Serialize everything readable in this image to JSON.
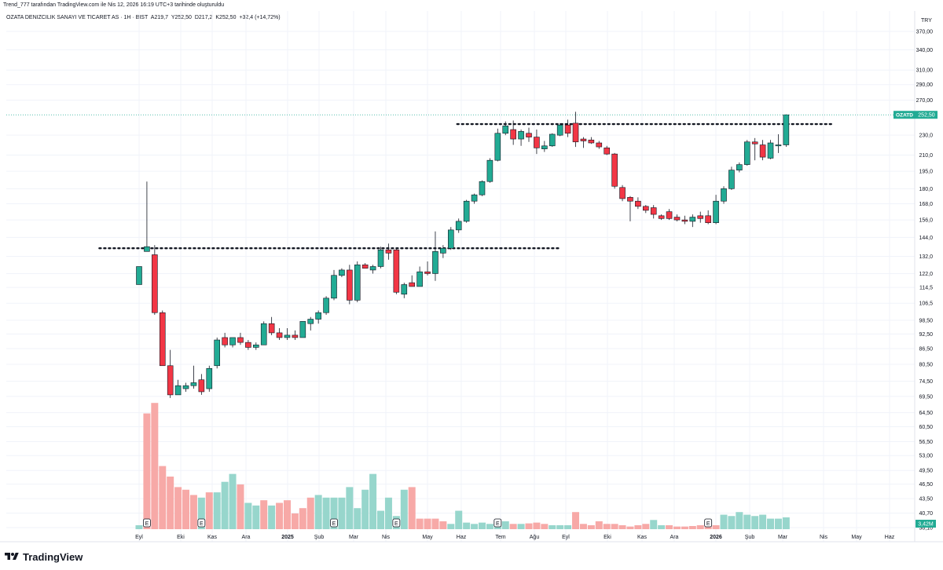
{
  "header": {
    "credit": "Trend_777 tarafından TradingView.com ile Nis 12, 2026 16:19 UTC+3 tarihinde oluşturuldu"
  },
  "legend": {
    "symbol": "OZATA DENIZCILIK SANAYI VE TICARET AS · 1H · BIST",
    "open": "A219,7",
    "high": "Y252,50",
    "low": "D217,2",
    "close": "K252,50",
    "change": "+32,4 (+14,72%)"
  },
  "brand": {
    "name": "TradingView"
  },
  "colors": {
    "up": "#22ab94",
    "down": "#f23645",
    "volume_up": "#97d6cc",
    "volume_down": "#f7a9a7",
    "last_price": "#22ab94",
    "grid": "#f0f3fa",
    "level_line": "#131722"
  },
  "chart_data": {
    "type": "candlestick",
    "currency": "TRY",
    "interval": "1H",
    "y_scale": "log",
    "price_ticks": [
      "370,00",
      "340,00",
      "310,00",
      "290,00",
      "270,00",
      "230,0",
      "210,0",
      "195,0",
      "180,0",
      "168,0",
      "156,0",
      "144,0",
      "132,0",
      "122,0",
      "114,5",
      "106,5",
      "98,50",
      "92,50",
      "86,50",
      "80,50",
      "74,50",
      "69,50",
      "64,50",
      "60,50",
      "56,50",
      "53,00",
      "49,50",
      "46,50",
      "43,50",
      "40,70",
      "38,10"
    ],
    "time_labels": [
      "Eyl",
      "Eki",
      "Kas",
      "Ara",
      "2025",
      "Şub",
      "Mar",
      "Nis",
      "May",
      "Haz",
      "Tem",
      "Ağu",
      "Eyl",
      "Eki",
      "Kas",
      "Ara",
      "2026",
      "Şub",
      "Mar",
      "Nis",
      "May",
      "Haz"
    ],
    "bold_time_labels": [
      "2025",
      "2026"
    ],
    "candles": [
      {
        "o": 116,
        "h": 126,
        "l": 116,
        "c": 126
      },
      {
        "o": 135,
        "h": 186,
        "l": 135,
        "c": 138
      },
      {
        "o": 133,
        "h": 139,
        "l": 101,
        "c": 102
      },
      {
        "o": 102,
        "h": 103,
        "l": 80,
        "c": 80
      },
      {
        "o": 80,
        "h": 86,
        "l": 69,
        "c": 70
      },
      {
        "o": 70,
        "h": 75,
        "l": 70,
        "c": 73
      },
      {
        "o": 72,
        "h": 74,
        "l": 71,
        "c": 73
      },
      {
        "o": 73,
        "h": 80,
        "l": 72,
        "c": 74
      },
      {
        "o": 75,
        "h": 77,
        "l": 70,
        "c": 71
      },
      {
        "o": 72,
        "h": 80,
        "l": 71,
        "c": 79
      },
      {
        "o": 80,
        "h": 91,
        "l": 79,
        "c": 90
      },
      {
        "o": 91,
        "h": 93,
        "l": 87,
        "c": 88
      },
      {
        "o": 88,
        "h": 91,
        "l": 87,
        "c": 91
      },
      {
        "o": 91,
        "h": 93,
        "l": 88,
        "c": 89
      },
      {
        "o": 89,
        "h": 90,
        "l": 86,
        "c": 87
      },
      {
        "o": 87,
        "h": 89,
        "l": 86,
        "c": 88
      },
      {
        "o": 88,
        "h": 98,
        "l": 88,
        "c": 97
      },
      {
        "o": 97,
        "h": 100,
        "l": 92,
        "c": 93
      },
      {
        "o": 93,
        "h": 95,
        "l": 90,
        "c": 91
      },
      {
        "o": 91,
        "h": 95,
        "l": 90,
        "c": 92
      },
      {
        "o": 92,
        "h": 94,
        "l": 90,
        "c": 91
      },
      {
        "o": 91,
        "h": 98,
        "l": 91,
        "c": 98
      },
      {
        "o": 97,
        "h": 100,
        "l": 94,
        "c": 99
      },
      {
        "o": 99,
        "h": 103,
        "l": 97,
        "c": 102
      },
      {
        "o": 102,
        "h": 110,
        "l": 101,
        "c": 109
      },
      {
        "o": 109,
        "h": 124,
        "l": 108,
        "c": 121
      },
      {
        "o": 121,
        "h": 125,
        "l": 120,
        "c": 124
      },
      {
        "o": 124,
        "h": 127,
        "l": 106,
        "c": 108
      },
      {
        "o": 108,
        "h": 129,
        "l": 107,
        "c": 127
      },
      {
        "o": 127,
        "h": 128,
        "l": 125,
        "c": 125
      },
      {
        "o": 124,
        "h": 127,
        "l": 122,
        "c": 126
      },
      {
        "o": 126,
        "h": 138,
        "l": 125,
        "c": 136
      },
      {
        "o": 136,
        "h": 140,
        "l": 130,
        "c": 134
      },
      {
        "o": 136,
        "h": 137,
        "l": 111,
        "c": 112
      },
      {
        "o": 111,
        "h": 117,
        "l": 109,
        "c": 116
      },
      {
        "o": 117,
        "h": 121,
        "l": 115,
        "c": 115
      },
      {
        "o": 115,
        "h": 126,
        "l": 115,
        "c": 123
      },
      {
        "o": 123,
        "h": 129,
        "l": 121,
        "c": 122
      },
      {
        "o": 122,
        "h": 148,
        "l": 118,
        "c": 135
      },
      {
        "o": 134,
        "h": 139,
        "l": 131,
        "c": 137
      },
      {
        "o": 137,
        "h": 151,
        "l": 136,
        "c": 149
      },
      {
        "o": 149,
        "h": 157,
        "l": 147,
        "c": 155
      },
      {
        "o": 155,
        "h": 171,
        "l": 154,
        "c": 170
      },
      {
        "o": 170,
        "h": 176,
        "l": 168,
        "c": 175
      },
      {
        "o": 175,
        "h": 187,
        "l": 174,
        "c": 186
      },
      {
        "o": 186,
        "h": 207,
        "l": 185,
        "c": 205
      },
      {
        "o": 205,
        "h": 237,
        "l": 204,
        "c": 232
      },
      {
        "o": 232,
        "h": 245,
        "l": 230,
        "c": 240
      },
      {
        "o": 236,
        "h": 246,
        "l": 220,
        "c": 226
      },
      {
        "o": 226,
        "h": 236,
        "l": 219,
        "c": 234
      },
      {
        "o": 232,
        "h": 238,
        "l": 223,
        "c": 228
      },
      {
        "o": 228,
        "h": 236,
        "l": 211,
        "c": 217
      },
      {
        "o": 216,
        "h": 224,
        "l": 213,
        "c": 219
      },
      {
        "o": 219,
        "h": 232,
        "l": 218,
        "c": 231
      },
      {
        "o": 230,
        "h": 243,
        "l": 229,
        "c": 241
      },
      {
        "o": 241,
        "h": 247,
        "l": 228,
        "c": 232
      },
      {
        "o": 243,
        "h": 256,
        "l": 218,
        "c": 223
      },
      {
        "o": 226,
        "h": 228,
        "l": 217,
        "c": 224
      },
      {
        "o": 225,
        "h": 228,
        "l": 221,
        "c": 222
      },
      {
        "o": 222,
        "h": 224,
        "l": 216,
        "c": 218
      },
      {
        "o": 217,
        "h": 219,
        "l": 210,
        "c": 211
      },
      {
        "o": 211,
        "h": 212,
        "l": 180,
        "c": 182
      },
      {
        "o": 181,
        "h": 183,
        "l": 170,
        "c": 172
      },
      {
        "o": 173,
        "h": 174,
        "l": 155,
        "c": 170
      },
      {
        "o": 170,
        "h": 173,
        "l": 164,
        "c": 166
      },
      {
        "o": 166,
        "h": 167,
        "l": 161,
        "c": 163
      },
      {
        "o": 165,
        "h": 167,
        "l": 157,
        "c": 160
      },
      {
        "o": 159,
        "h": 160,
        "l": 156,
        "c": 157
      },
      {
        "o": 162,
        "h": 164,
        "l": 156,
        "c": 157
      },
      {
        "o": 158,
        "h": 160,
        "l": 155,
        "c": 156
      },
      {
        "o": 156,
        "h": 159,
        "l": 153,
        "c": 155
      },
      {
        "o": 155,
        "h": 160,
        "l": 151,
        "c": 158
      },
      {
        "o": 159,
        "h": 162,
        "l": 154,
        "c": 157
      },
      {
        "o": 159,
        "h": 163,
        "l": 153,
        "c": 154
      },
      {
        "o": 154,
        "h": 175,
        "l": 153,
        "c": 170
      },
      {
        "o": 170,
        "h": 182,
        "l": 168,
        "c": 180
      },
      {
        "o": 180,
        "h": 199,
        "l": 179,
        "c": 196
      },
      {
        "o": 196,
        "h": 203,
        "l": 194,
        "c": 201
      },
      {
        "o": 201,
        "h": 225,
        "l": 200,
        "c": 223
      },
      {
        "o": 223,
        "h": 227,
        "l": 205,
        "c": 221
      },
      {
        "o": 220,
        "h": 225,
        "l": 205,
        "c": 208
      },
      {
        "o": 207,
        "h": 225,
        "l": 206,
        "c": 222
      },
      {
        "o": 219,
        "h": 231,
        "l": 212,
        "c": 220
      },
      {
        "o": 220,
        "h": 253,
        "l": 218,
        "c": 252.5
      }
    ],
    "volume": [
      {
        "v": 1.5,
        "up": true
      },
      {
        "v": 44,
        "up": false
      },
      {
        "v": 48,
        "up": false
      },
      {
        "v": 24,
        "up": false
      },
      {
        "v": 20,
        "up": false
      },
      {
        "v": 16,
        "up": false
      },
      {
        "v": 15,
        "up": false
      },
      {
        "v": 13,
        "up": false
      },
      {
        "v": 12,
        "up": true
      },
      {
        "v": 14,
        "up": false
      },
      {
        "v": 14,
        "up": true
      },
      {
        "v": 18,
        "up": true
      },
      {
        "v": 21,
        "up": true
      },
      {
        "v": 17,
        "up": false
      },
      {
        "v": 10,
        "up": true
      },
      {
        "v": 9,
        "up": true
      },
      {
        "v": 11,
        "up": false
      },
      {
        "v": 9,
        "up": true
      },
      {
        "v": 10,
        "up": false
      },
      {
        "v": 11,
        "up": false
      },
      {
        "v": 6,
        "up": false
      },
      {
        "v": 8,
        "up": false
      },
      {
        "v": 12,
        "up": false
      },
      {
        "v": 13,
        "up": true
      },
      {
        "v": 12,
        "up": true
      },
      {
        "v": 12,
        "up": true
      },
      {
        "v": 12,
        "up": true
      },
      {
        "v": 16,
        "up": true
      },
      {
        "v": 8,
        "up": true
      },
      {
        "v": 15,
        "up": true
      },
      {
        "v": 21,
        "up": true
      },
      {
        "v": 7,
        "up": true
      },
      {
        "v": 12,
        "up": true
      },
      {
        "v": 5,
        "up": true
      },
      {
        "v": 15,
        "up": true
      },
      {
        "v": 16,
        "up": false
      },
      {
        "v": 4,
        "up": false
      },
      {
        "v": 4,
        "up": false
      },
      {
        "v": 4,
        "up": false
      },
      {
        "v": 3,
        "up": false
      },
      {
        "v": 2,
        "up": true
      },
      {
        "v": 7,
        "up": true
      },
      {
        "v": 2.5,
        "up": true
      },
      {
        "v": 2,
        "up": true
      },
      {
        "v": 2.5,
        "up": true
      },
      {
        "v": 2,
        "up": true
      },
      {
        "v": 2.5,
        "up": true
      },
      {
        "v": 3,
        "up": true
      },
      {
        "v": 2,
        "up": false
      },
      {
        "v": 2,
        "up": true
      },
      {
        "v": 2.2,
        "up": false
      },
      {
        "v": 2.5,
        "up": false
      },
      {
        "v": 2,
        "up": false
      },
      {
        "v": 1.5,
        "up": true
      },
      {
        "v": 1.5,
        "up": true
      },
      {
        "v": 1.5,
        "up": true
      },
      {
        "v": 6.5,
        "up": false
      },
      {
        "v": 2,
        "up": false
      },
      {
        "v": 1.5,
        "up": false
      },
      {
        "v": 3,
        "up": false
      },
      {
        "v": 2,
        "up": false
      },
      {
        "v": 2,
        "up": false
      },
      {
        "v": 1.5,
        "up": false
      },
      {
        "v": 1,
        "up": false
      },
      {
        "v": 1.5,
        "up": false
      },
      {
        "v": 2,
        "up": false
      },
      {
        "v": 3.5,
        "up": true
      },
      {
        "v": 1.5,
        "up": true
      },
      {
        "v": 1.5,
        "up": false
      },
      {
        "v": 1,
        "up": false
      },
      {
        "v": 1,
        "up": false
      },
      {
        "v": 1.2,
        "up": false
      },
      {
        "v": 1.5,
        "up": false
      },
      {
        "v": 2,
        "up": false
      },
      {
        "v": 1.5,
        "up": false
      },
      {
        "v": 5.5,
        "up": true
      },
      {
        "v": 5,
        "up": true
      },
      {
        "v": 6.5,
        "up": true
      },
      {
        "v": 5.5,
        "up": true
      },
      {
        "v": 5,
        "up": true
      },
      {
        "v": 5.5,
        "up": true
      },
      {
        "v": 4,
        "up": true
      },
      {
        "v": 4,
        "up": true
      },
      {
        "v": 4.5,
        "up": true
      }
    ],
    "levels": [
      {
        "price": 137,
        "from": -5.1,
        "to": 54.1
      },
      {
        "price": 242,
        "from": 40.8,
        "to": 88.8
      }
    ],
    "earnings_markers": [
      1,
      8,
      25,
      33,
      46,
      73
    ],
    "earnings_label": "E",
    "last_price": {
      "symbol": "OZATD",
      "value": "252,50"
    },
    "volume_badge": "3,42M"
  }
}
